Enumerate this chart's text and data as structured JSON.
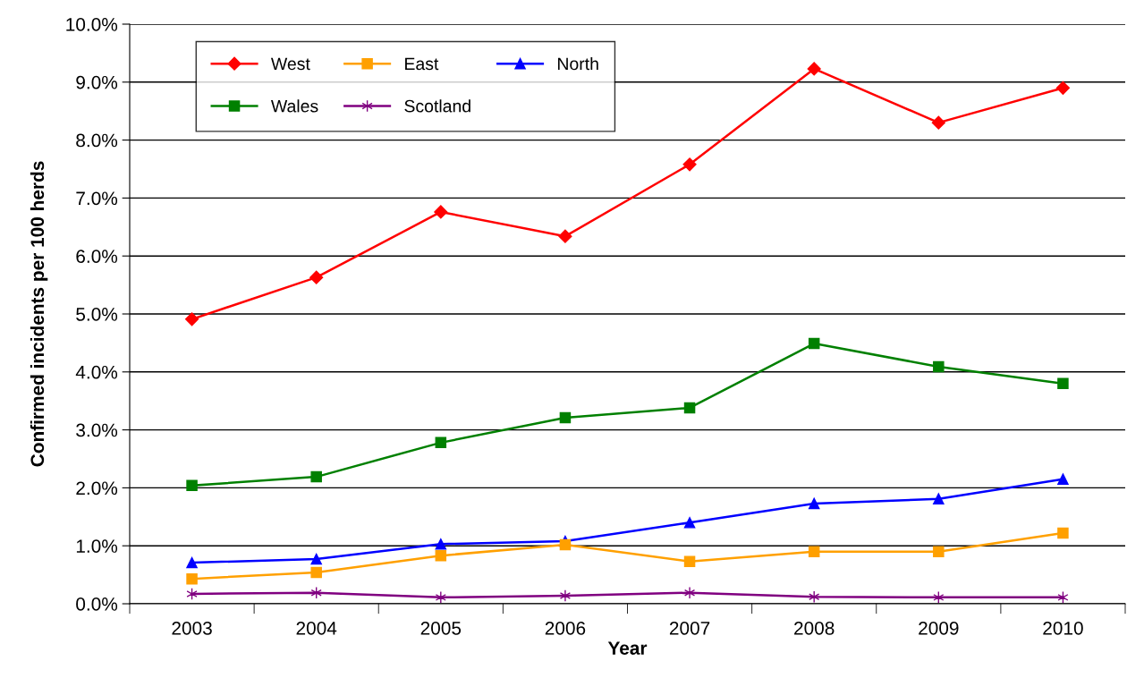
{
  "chart_data": {
    "type": "line",
    "xlabel": "Year",
    "ylabel": "Confirmed incidents per 100 herds",
    "categories": [
      "2003",
      "2004",
      "2005",
      "2006",
      "2007",
      "2008",
      "2009",
      "2010"
    ],
    "series": [
      {
        "name": "West",
        "color": "#ff0000",
        "marker": "diamond",
        "values": [
          4.91,
          5.63,
          6.76,
          6.34,
          7.58,
          9.23,
          8.3,
          8.9
        ]
      },
      {
        "name": "East",
        "color": "#ffa000",
        "marker": "square",
        "values": [
          0.43,
          0.54,
          0.83,
          1.02,
          0.73,
          0.9,
          0.9,
          1.22
        ]
      },
      {
        "name": "North",
        "color": "#0000ff",
        "marker": "triangle",
        "values": [
          0.71,
          0.77,
          1.03,
          1.08,
          1.4,
          1.73,
          1.81,
          2.15
        ]
      },
      {
        "name": "Wales",
        "color": "#008000",
        "marker": "square",
        "values": [
          2.04,
          2.19,
          2.78,
          3.21,
          3.38,
          4.49,
          4.09,
          3.8
        ]
      },
      {
        "name": "Scotland",
        "color": "#800080",
        "marker": "cross",
        "values": [
          0.17,
          0.19,
          0.11,
          0.14,
          0.19,
          0.12,
          0.11,
          0.11
        ]
      }
    ],
    "ylim": [
      0,
      10
    ],
    "yticks": [
      {
        "value": 0,
        "label": "0.0%"
      },
      {
        "value": 1,
        "label": "1.0%"
      },
      {
        "value": 2,
        "label": "2.0%"
      },
      {
        "value": 3,
        "label": "3.0%"
      },
      {
        "value": 4,
        "label": "4.0%"
      },
      {
        "value": 5,
        "label": "5.0%"
      },
      {
        "value": 6,
        "label": "6.0%"
      },
      {
        "value": 7,
        "label": "7.0%"
      },
      {
        "value": 8,
        "label": "8.0%"
      },
      {
        "value": 9,
        "label": "9.0%"
      },
      {
        "value": 10,
        "label": "10.0%"
      }
    ],
    "grid": "y",
    "legend": "top left",
    "line_style": "solid"
  }
}
